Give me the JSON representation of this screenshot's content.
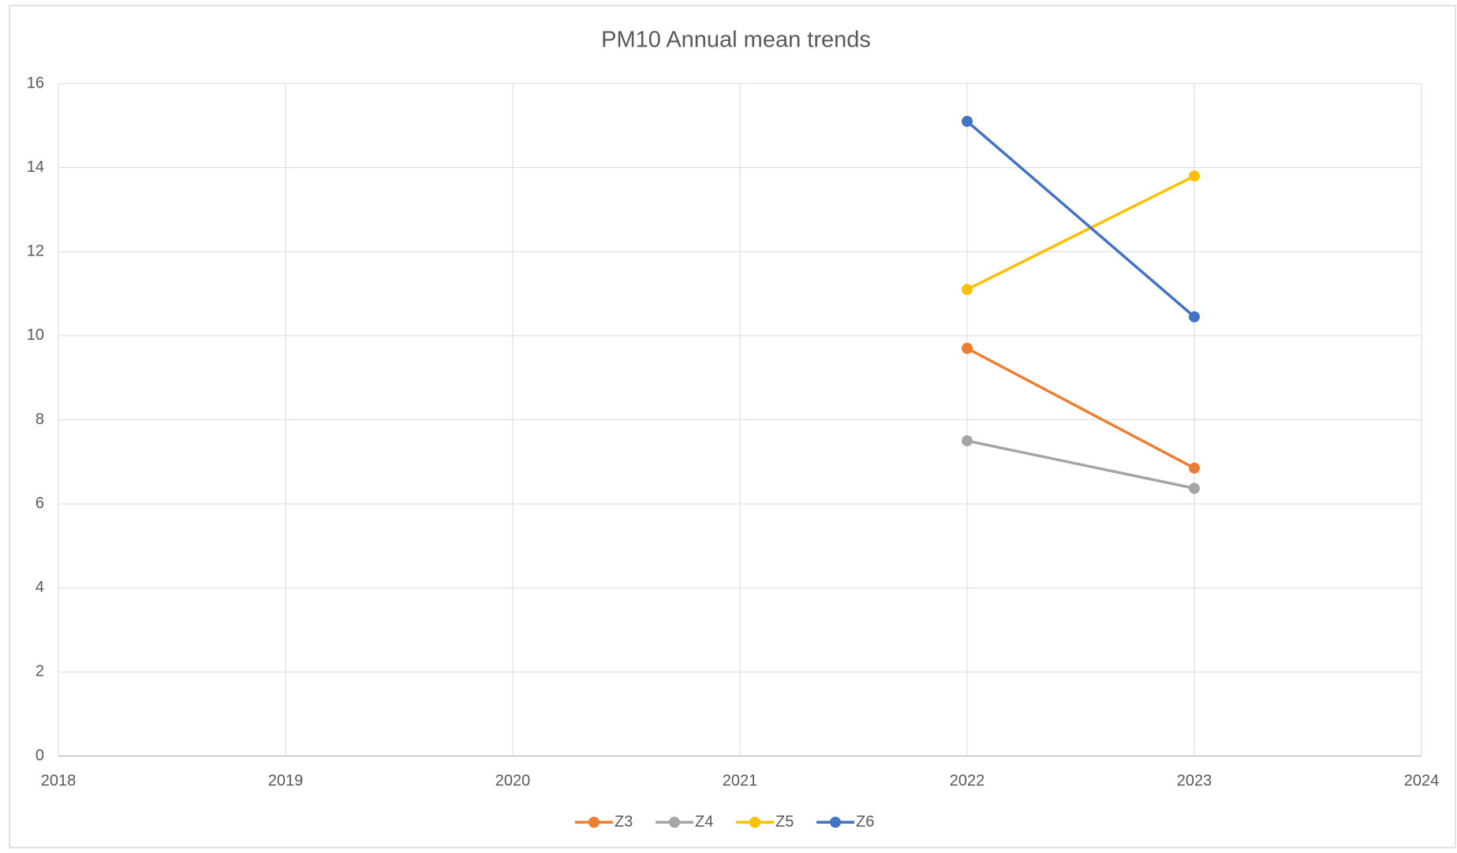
{
  "chart_data": {
    "type": "line",
    "title": "PM10 Annual mean trends",
    "x": [
      2022,
      2023
    ],
    "series": [
      {
        "name": "Z3",
        "color": "#ed7d31",
        "values": [
          9.7,
          6.85
        ]
      },
      {
        "name": "Z4",
        "color": "#a5a5a5",
        "values": [
          7.5,
          6.37
        ]
      },
      {
        "name": "Z5",
        "color": "#ffc000",
        "values": [
          11.1,
          13.8
        ]
      },
      {
        "name": "Z6",
        "color": "#4472c4",
        "values": [
          15.1,
          10.45
        ]
      }
    ],
    "xlim": [
      2018,
      2024
    ],
    "xticks": [
      2018,
      2019,
      2020,
      2021,
      2022,
      2023,
      2024
    ],
    "ylim": [
      0,
      16
    ],
    "yticks": [
      0,
      2,
      4,
      6,
      8,
      10,
      12,
      14,
      16
    ],
    "grid": true,
    "legend": "bottom"
  }
}
